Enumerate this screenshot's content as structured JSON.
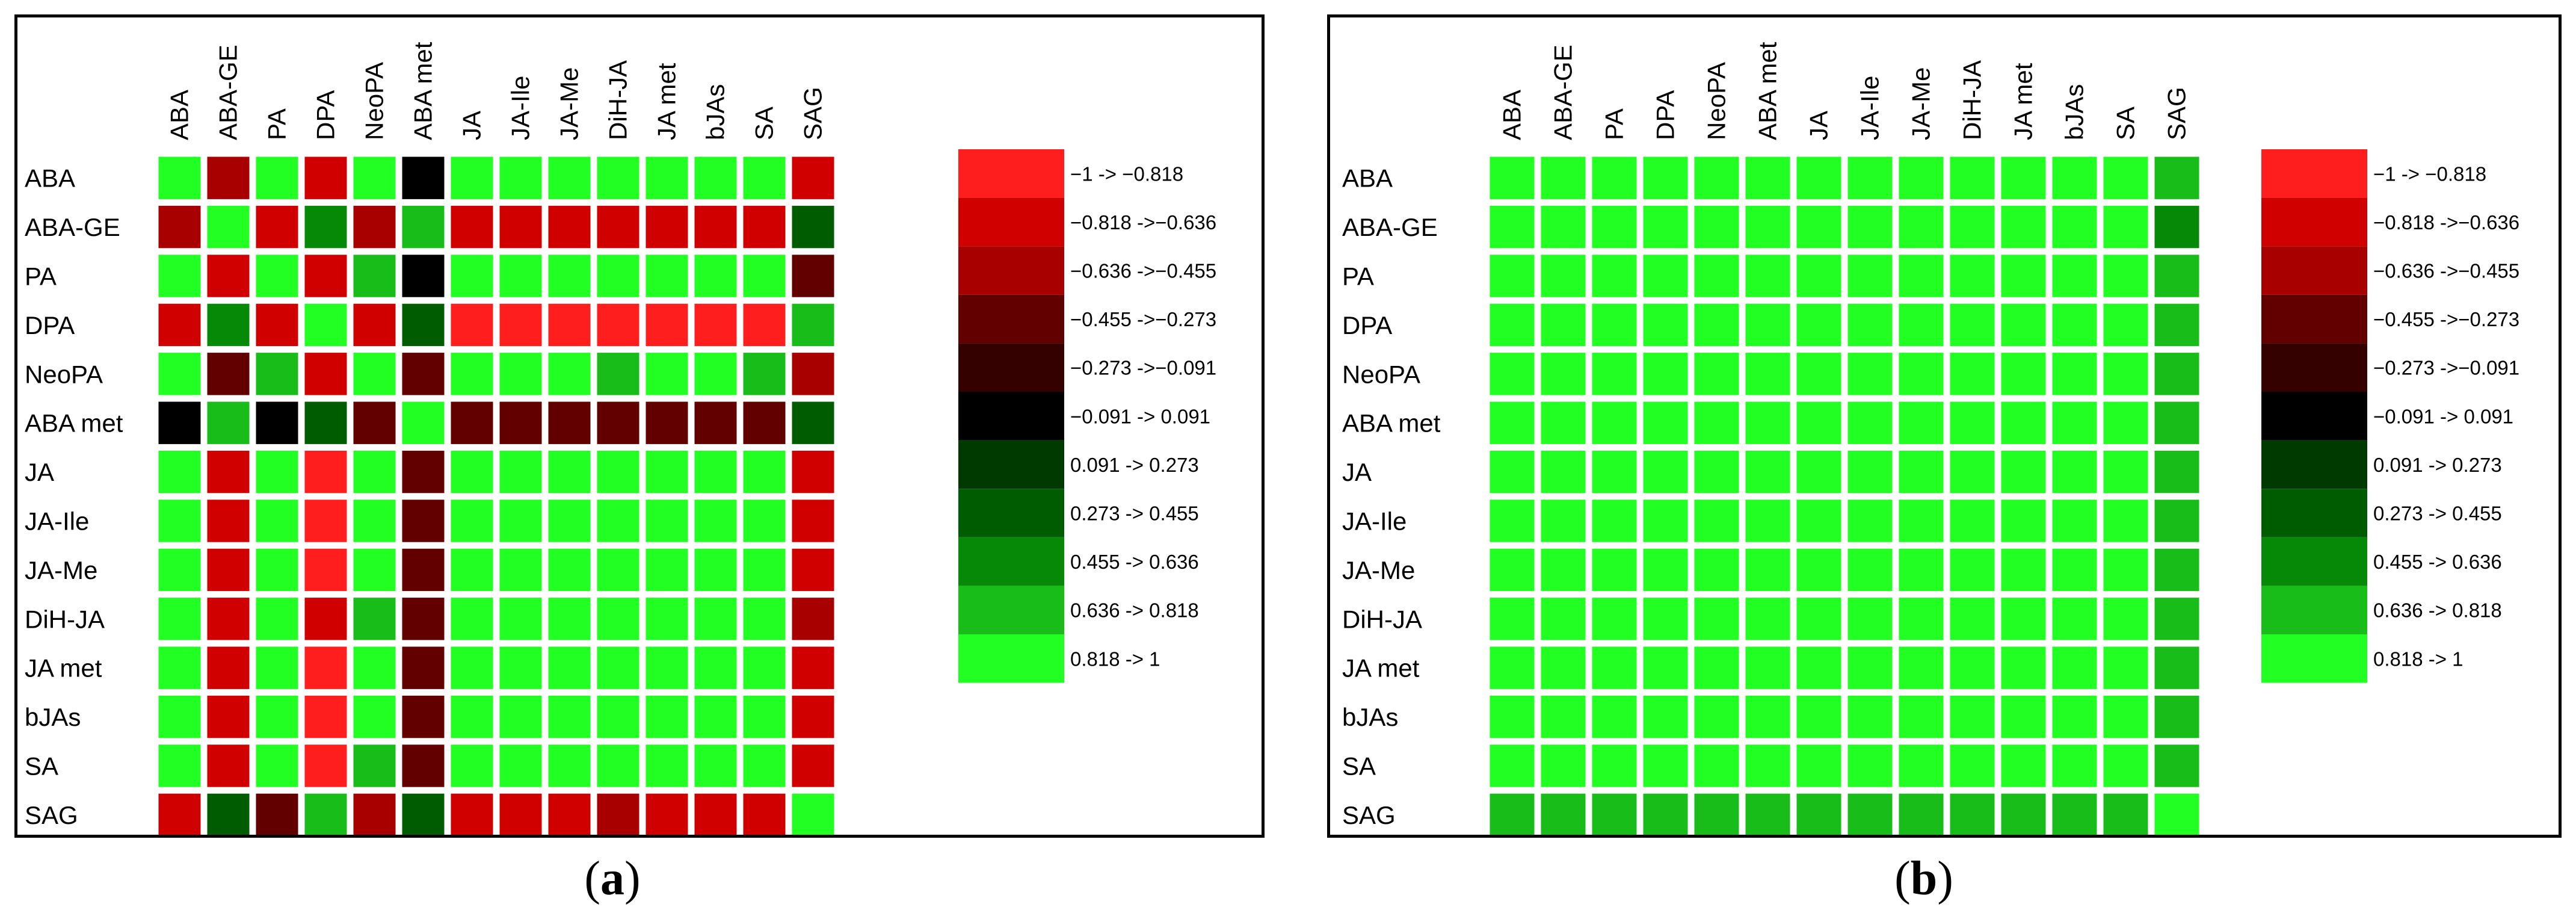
{
  "figure": {
    "panel_a_caption": {
      "open": "(",
      "letter": "a",
      "close": ")"
    },
    "panel_b_caption": {
      "open": "(",
      "letter": "b",
      "close": ")"
    }
  },
  "chart_data": [
    {
      "type": "heatmap",
      "panel": "a",
      "title": "",
      "row_labels": [
        "ABA",
        "ABA-GE",
        "PA",
        "DPA",
        "NeoPA",
        "ABA met",
        "JA",
        "JA-Ile",
        "JA-Me",
        "DiH-JA",
        "JA met",
        "bJAs",
        "SA",
        "SAG"
      ],
      "col_labels": [
        "ABA",
        "ABA-GE",
        "PA",
        "DPA",
        "NeoPA",
        "ABA met",
        "JA",
        "JA-Ile",
        "JA-Me",
        "DiH-JA",
        "JA met",
        "bJAs",
        "SA",
        "SAG"
      ],
      "value_range": [
        -1,
        1
      ],
      "values": [
        [
          1.0,
          -0.55,
          1.0,
          -0.75,
          1.0,
          0.0,
          1.0,
          1.0,
          1.0,
          1.0,
          1.0,
          1.0,
          1.0,
          -0.65
        ],
        [
          -0.55,
          1.0,
          -0.75,
          0.55,
          -0.5,
          0.65,
          -0.75,
          -0.75,
          -0.75,
          -0.75,
          -0.75,
          -0.75,
          -0.75,
          0.35
        ],
        [
          1.0,
          -0.75,
          1.0,
          -0.75,
          0.7,
          0.0,
          1.0,
          1.0,
          1.0,
          1.0,
          1.0,
          1.0,
          1.0,
          -0.45
        ],
        [
          -0.75,
          0.55,
          -0.75,
          1.0,
          -0.75,
          0.4,
          -0.9,
          -0.9,
          -0.9,
          -0.9,
          -0.9,
          -0.9,
          -0.9,
          0.7
        ],
        [
          1.0,
          -0.45,
          0.65,
          -0.75,
          1.0,
          -0.35,
          1.0,
          1.0,
          1.0,
          0.7,
          1.0,
          1.0,
          0.7,
          -0.6
        ],
        [
          0.0,
          0.7,
          0.0,
          0.4,
          -0.35,
          1.0,
          -0.35,
          -0.35,
          -0.3,
          -0.35,
          -0.35,
          -0.3,
          -0.35,
          0.3
        ],
        [
          1.0,
          -0.75,
          1.0,
          -0.9,
          1.0,
          -0.35,
          1.0,
          1.0,
          1.0,
          1.0,
          1.0,
          1.0,
          1.0,
          -0.75
        ],
        [
          1.0,
          -0.75,
          1.0,
          -0.9,
          1.0,
          -0.4,
          1.0,
          1.0,
          1.0,
          1.0,
          1.0,
          1.0,
          1.0,
          -0.75
        ],
        [
          1.0,
          -0.75,
          1.0,
          -0.9,
          1.0,
          -0.35,
          1.0,
          1.0,
          1.0,
          1.0,
          1.0,
          1.0,
          1.0,
          -0.7
        ],
        [
          1.0,
          -0.75,
          1.0,
          -0.7,
          0.7,
          -0.35,
          1.0,
          1.0,
          1.0,
          1.0,
          1.0,
          1.0,
          1.0,
          -0.6
        ],
        [
          1.0,
          -0.75,
          1.0,
          -0.9,
          1.0,
          -0.35,
          1.0,
          1.0,
          1.0,
          1.0,
          1.0,
          1.0,
          1.0,
          -0.75
        ],
        [
          1.0,
          -0.7,
          1.0,
          -0.85,
          1.0,
          -0.3,
          1.0,
          1.0,
          1.0,
          1.0,
          1.0,
          1.0,
          1.0,
          -0.7
        ],
        [
          1.0,
          -0.75,
          1.0,
          -0.9,
          0.7,
          -0.35,
          1.0,
          1.0,
          1.0,
          1.0,
          1.0,
          1.0,
          1.0,
          -0.75
        ],
        [
          -0.65,
          0.35,
          -0.45,
          0.7,
          -0.6,
          0.3,
          -0.75,
          -0.75,
          -0.75,
          -0.6,
          -0.75,
          -0.7,
          -0.75,
          1.0
        ]
      ],
      "legend": {
        "placement": "right",
        "bins": [
          {
            "label": "−1 -> −0.818",
            "color": "#ff1e1e"
          },
          {
            "label": "−0.818 ->−0.636",
            "color": "#d00000"
          },
          {
            "label": "−0.636 ->−0.455",
            "color": "#a80000"
          },
          {
            "label": "−0.455 ->−0.273",
            "color": "#620000"
          },
          {
            "label": "−0.273 ->−0.091",
            "color": "#350000"
          },
          {
            "label": "−0.091 -> 0.091",
            "color": "#000000"
          },
          {
            "label": "0.091 -> 0.273",
            "color": "#003a00"
          },
          {
            "label": "0.273 -> 0.455",
            "color": "#005c00"
          },
          {
            "label": "0.455 -> 0.636",
            "color": "#068906"
          },
          {
            "label": "0.636 -> 0.818",
            "color": "#19bd19"
          },
          {
            "label": "0.818 -> 1",
            "color": "#22ff22"
          }
        ]
      }
    },
    {
      "type": "heatmap",
      "panel": "b",
      "title": "",
      "row_labels": [
        "ABA",
        "ABA-GE",
        "PA",
        "DPA",
        "NeoPA",
        "ABA met",
        "JA",
        "JA-Ile",
        "JA-Me",
        "DiH-JA",
        "JA met",
        "bJAs",
        "SA",
        "SAG"
      ],
      "col_labels": [
        "ABA",
        "ABA-GE",
        "PA",
        "DPA",
        "NeoPA",
        "ABA met",
        "JA",
        "JA-Ile",
        "JA-Me",
        "DiH-JA",
        "JA met",
        "bJAs",
        "SA",
        "SAG"
      ],
      "value_range": [
        -1,
        1
      ],
      "values": [
        [
          1.0,
          1.0,
          1.0,
          1.0,
          1.0,
          1.0,
          1.0,
          1.0,
          1.0,
          1.0,
          1.0,
          1.0,
          1.0,
          0.7
        ],
        [
          1.0,
          1.0,
          1.0,
          1.0,
          1.0,
          1.0,
          1.0,
          1.0,
          1.0,
          1.0,
          1.0,
          1.0,
          1.0,
          0.55
        ],
        [
          1.0,
          1.0,
          1.0,
          1.0,
          1.0,
          1.0,
          1.0,
          1.0,
          1.0,
          1.0,
          1.0,
          1.0,
          1.0,
          0.7
        ],
        [
          1.0,
          1.0,
          1.0,
          1.0,
          1.0,
          1.0,
          1.0,
          1.0,
          1.0,
          1.0,
          1.0,
          1.0,
          1.0,
          0.7
        ],
        [
          1.0,
          1.0,
          1.0,
          1.0,
          1.0,
          1.0,
          1.0,
          1.0,
          1.0,
          1.0,
          1.0,
          1.0,
          1.0,
          0.7
        ],
        [
          1.0,
          1.0,
          1.0,
          1.0,
          1.0,
          1.0,
          1.0,
          1.0,
          1.0,
          1.0,
          1.0,
          1.0,
          1.0,
          0.7
        ],
        [
          1.0,
          1.0,
          1.0,
          1.0,
          1.0,
          1.0,
          1.0,
          1.0,
          1.0,
          1.0,
          1.0,
          1.0,
          1.0,
          0.7
        ],
        [
          1.0,
          1.0,
          1.0,
          1.0,
          1.0,
          1.0,
          1.0,
          1.0,
          1.0,
          1.0,
          1.0,
          1.0,
          1.0,
          0.7
        ],
        [
          1.0,
          1.0,
          1.0,
          1.0,
          1.0,
          1.0,
          1.0,
          1.0,
          1.0,
          1.0,
          1.0,
          1.0,
          1.0,
          0.7
        ],
        [
          1.0,
          1.0,
          1.0,
          1.0,
          1.0,
          1.0,
          1.0,
          1.0,
          1.0,
          1.0,
          1.0,
          1.0,
          1.0,
          0.7
        ],
        [
          1.0,
          1.0,
          1.0,
          1.0,
          1.0,
          1.0,
          1.0,
          1.0,
          1.0,
          1.0,
          1.0,
          1.0,
          1.0,
          0.7
        ],
        [
          1.0,
          1.0,
          1.0,
          1.0,
          1.0,
          1.0,
          1.0,
          1.0,
          1.0,
          1.0,
          1.0,
          1.0,
          1.0,
          0.7
        ],
        [
          1.0,
          1.0,
          1.0,
          1.0,
          1.0,
          1.0,
          1.0,
          1.0,
          1.0,
          1.0,
          1.0,
          1.0,
          1.0,
          0.7
        ],
        [
          0.7,
          0.7,
          0.7,
          0.7,
          0.7,
          0.7,
          0.7,
          0.7,
          0.7,
          0.7,
          0.7,
          0.7,
          0.7,
          1.0
        ]
      ],
      "legend": {
        "placement": "right",
        "bins": [
          {
            "label": "−1 -> −0.818",
            "color": "#ff1e1e"
          },
          {
            "label": "−0.818 ->−0.636",
            "color": "#d00000"
          },
          {
            "label": "−0.636 ->−0.455",
            "color": "#a80000"
          },
          {
            "label": "−0.455 ->−0.273",
            "color": "#620000"
          },
          {
            "label": "−0.273 ->−0.091",
            "color": "#350000"
          },
          {
            "label": "−0.091 -> 0.091",
            "color": "#000000"
          },
          {
            "label": "0.091 -> 0.273",
            "color": "#003a00"
          },
          {
            "label": "0.273 -> 0.455",
            "color": "#005c00"
          },
          {
            "label": "0.455 -> 0.636",
            "color": "#068906"
          },
          {
            "label": "0.636 -> 0.818",
            "color": "#19bd19"
          },
          {
            "label": "0.818 -> 1",
            "color": "#22ff22"
          }
        ]
      }
    }
  ]
}
